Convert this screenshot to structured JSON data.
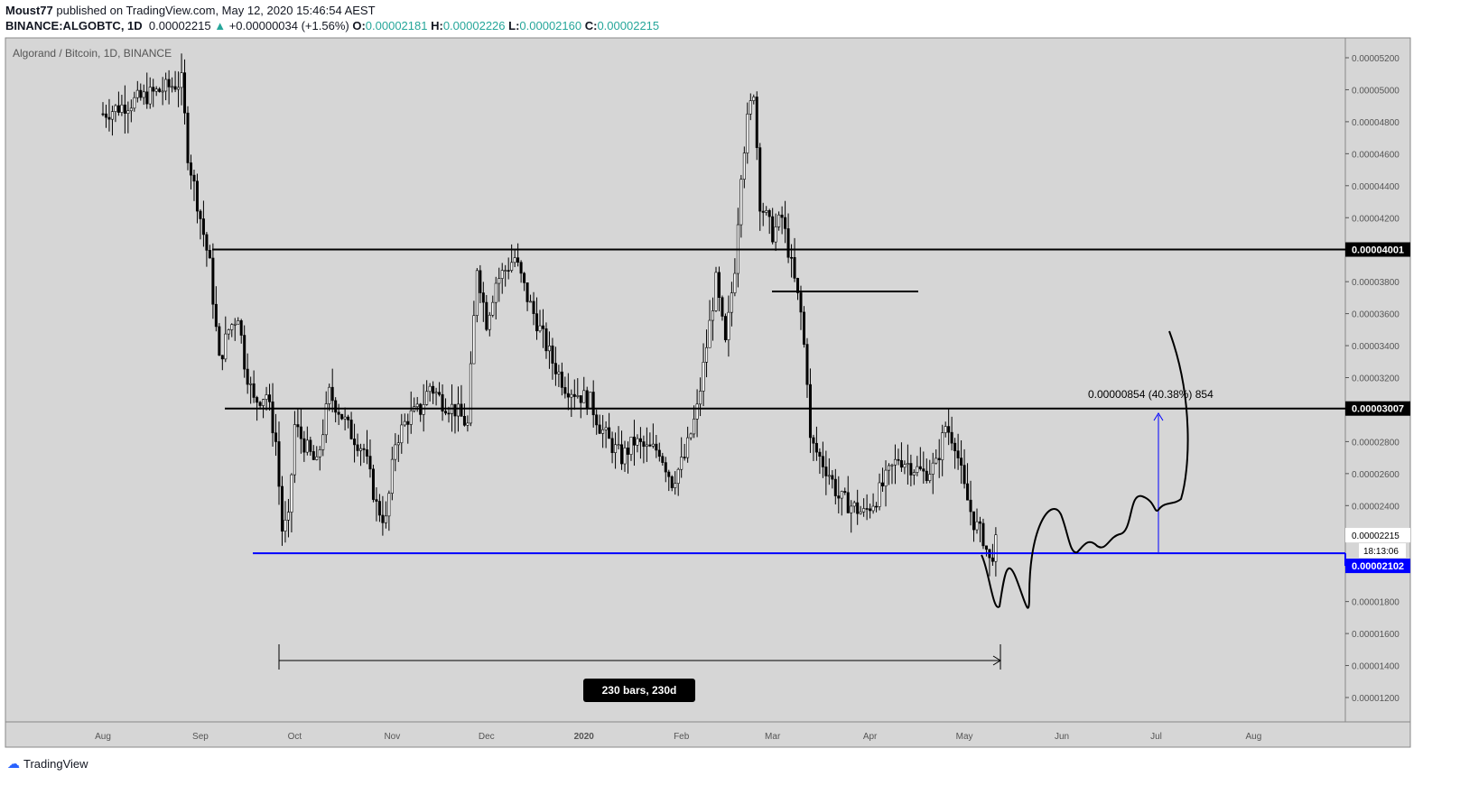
{
  "header": {
    "author": "Moust77",
    "published": "published on TradingView.com, May 12, 2020 15:46:54 AEST"
  },
  "ticker": {
    "symbol": "BINANCE:ALGOBTC, 1D",
    "last": "0.00002215",
    "change": "+0.00000034 (+1.56%)",
    "o_label": "O:",
    "o": "0.00002181",
    "h_label": "H:",
    "h": "0.00002226",
    "l_label": "L:",
    "l": "0.00002160",
    "c_label": "C:",
    "c": "0.00002215"
  },
  "chart_data": {
    "type": "candlestick",
    "title": "Algorand / Bitcoin, 1D, BINANCE",
    "price_unit": "1e-8 BTC (satoshi)",
    "ylim": [
      1100,
      5300
    ],
    "y_ticks": [
      "0.00005200",
      "0.00005000",
      "0.00004800",
      "0.00004600",
      "0.00004400",
      "0.00004200",
      "0.00003800",
      "0.00003600",
      "0.00003400",
      "0.00003200",
      "0.00002800",
      "0.00002600",
      "0.00002400",
      "0.00001800",
      "0.00001600",
      "0.00001400",
      "0.00001200"
    ],
    "x_ticks": [
      "Aug",
      "Sep",
      "Oct",
      "Nov",
      "Dec",
      "2020",
      "Feb",
      "Mar",
      "Apr",
      "May",
      "Jun",
      "Jul",
      "Aug"
    ],
    "x_tick_days": [
      0,
      31,
      61,
      92,
      122,
      153,
      184,
      213,
      244,
      274,
      305,
      335,
      366
    ],
    "close_points_day_value": [
      [
        0,
        4850
      ],
      [
        25,
        5050
      ],
      [
        27,
        4600
      ],
      [
        31,
        4200
      ],
      [
        34,
        3900
      ],
      [
        37,
        3300
      ],
      [
        40,
        3500
      ],
      [
        43,
        3600
      ],
      [
        45,
        3300
      ],
      [
        48,
        3050
      ],
      [
        52,
        3100
      ],
      [
        55,
        2800
      ],
      [
        57,
        2250
      ],
      [
        59,
        2300
      ],
      [
        61,
        2900
      ],
      [
        65,
        2750
      ],
      [
        68,
        2650
      ],
      [
        72,
        3100
      ],
      [
        75,
        3000
      ],
      [
        79,
        2850
      ],
      [
        83,
        2750
      ],
      [
        87,
        2400
      ],
      [
        90,
        2300
      ],
      [
        93,
        2800
      ],
      [
        97,
        2950
      ],
      [
        101,
        3000
      ],
      [
        104,
        3150
      ],
      [
        108,
        3050
      ],
      [
        112,
        3000
      ],
      [
        116,
        2900
      ],
      [
        119,
        3900
      ],
      [
        122,
        3550
      ],
      [
        125,
        3800
      ],
      [
        129,
        3900
      ],
      [
        131,
        3950
      ],
      [
        135,
        3700
      ],
      [
        139,
        3500
      ],
      [
        143,
        3300
      ],
      [
        147,
        3150
      ],
      [
        151,
        3100
      ],
      [
        155,
        3050
      ],
      [
        158,
        2900
      ],
      [
        161,
        2800
      ],
      [
        165,
        2700
      ],
      [
        169,
        2800
      ],
      [
        173,
        2750
      ],
      [
        177,
        2750
      ],
      [
        181,
        2550
      ],
      [
        185,
        2700
      ],
      [
        189,
        3000
      ],
      [
        192,
        3400
      ],
      [
        195,
        3800
      ],
      [
        198,
        3400
      ],
      [
        201,
        3900
      ],
      [
        203,
        4500
      ],
      [
        205,
        4800
      ],
      [
        207,
        5000
      ],
      [
        209,
        4300
      ],
      [
        213,
        4100
      ],
      [
        216,
        4200
      ],
      [
        219,
        3900
      ],
      [
        222,
        3600
      ],
      [
        224,
        3200
      ],
      [
        225,
        2800
      ],
      [
        228,
        2700
      ],
      [
        231,
        2600
      ],
      [
        234,
        2450
      ],
      [
        238,
        2400
      ],
      [
        242,
        2350
      ],
      [
        246,
        2450
      ],
      [
        250,
        2600
      ],
      [
        253,
        2700
      ],
      [
        257,
        2650
      ],
      [
        261,
        2600
      ],
      [
        265,
        2650
      ],
      [
        268,
        2900
      ],
      [
        271,
        2800
      ],
      [
        274,
        2500
      ],
      [
        277,
        2300
      ],
      [
        280,
        2200
      ],
      [
        282,
        2050
      ],
      [
        285,
        2215
      ]
    ],
    "levels": [
      {
        "value": "0.00004001",
        "price": 4001,
        "color": "#000000"
      },
      {
        "value": "0.00003007",
        "price": 3007,
        "color": "#000000"
      },
      {
        "value": "0.00002102",
        "price": 2102,
        "color": "#0000ff"
      }
    ],
    "last_price_label": "0.00002215",
    "countdown": "18:13:06",
    "range_label": "230 bars, 230d",
    "measure_label": "0.00000854 (40.38%) 854"
  },
  "footer": {
    "brand": "TradingView"
  },
  "colors": {
    "bg": "#d6d6d6",
    "candle": "#000000",
    "blue": "#0000ff",
    "teal": "#26a69a"
  }
}
